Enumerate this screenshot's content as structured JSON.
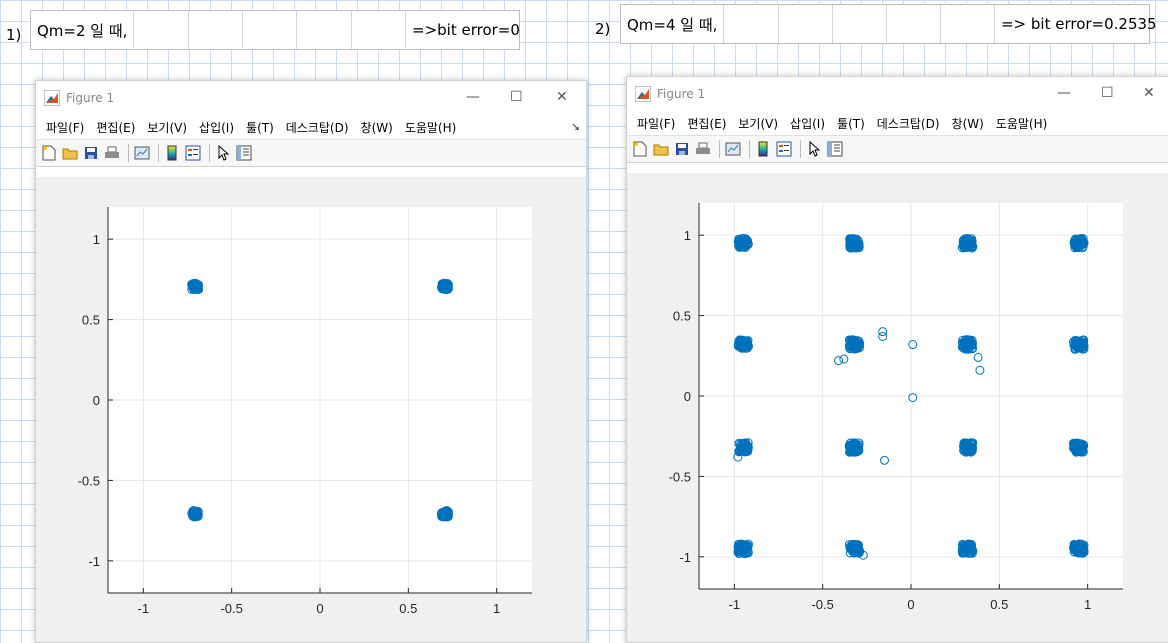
{
  "left": {
    "caption": "1)",
    "table": {
      "label": "Qm=2 일 때,",
      "result": "=>bit error=0"
    },
    "window": {
      "title": "Figure 1",
      "controls": {
        "minimize": "—",
        "maximize": "☐",
        "close": "✕"
      },
      "menus": [
        "파일(F)",
        "편집(E)",
        "보기(V)",
        "삽입(I)",
        "툴(T)",
        "데스크탑(D)",
        "창(W)",
        "도움말(H)"
      ],
      "dock_symbol": "↘",
      "toolbar_icons": [
        "new-figure-icon",
        "open-file-icon",
        "save-icon",
        "print-icon",
        "link-plot-icon",
        "colorbar-icon",
        "legend-icon",
        "pointer-icon",
        "property-editor-icon"
      ]
    }
  },
  "right": {
    "caption": "2)",
    "table": {
      "label": "Qm=4 일 때,",
      "result": "=> bit error=0.2535"
    },
    "window": {
      "title": "Figure 1",
      "controls": {
        "minimize": "—",
        "maximize": "☐",
        "close": "✕"
      },
      "menus": [
        "파일(F)",
        "편집(E)",
        "보기(V)",
        "삽입(I)",
        "툴(T)",
        "데스크탑(D)",
        "창(W)",
        "도움말(H)"
      ],
      "toolbar_icons": [
        "new-figure-icon",
        "open-file-icon",
        "save-icon",
        "print-icon",
        "link-plot-icon",
        "colorbar-icon",
        "legend-icon",
        "pointer-icon",
        "property-editor-icon"
      ]
    }
  },
  "chart_data": [
    {
      "type": "scatter",
      "title": "",
      "xlabel": "",
      "ylabel": "",
      "xlim": [
        -1.2,
        1.2
      ],
      "ylim": [
        -1.2,
        1.2
      ],
      "xticks": [
        "-1",
        "-0.5",
        "0",
        "0.5",
        "1"
      ],
      "yticks": [
        "1",
        "0.5",
        "0",
        "-0.5",
        "-1"
      ],
      "grid": true,
      "marker": "circle-open",
      "color": "#0072bd",
      "constellation": [
        [
          -0.707,
          0.707
        ],
        [
          0.707,
          0.707
        ],
        [
          -0.707,
          -0.707
        ],
        [
          0.707,
          -0.707
        ]
      ],
      "cluster_spread": 0.02,
      "outliers": []
    },
    {
      "type": "scatter",
      "title": "",
      "xlabel": "",
      "ylabel": "",
      "xlim": [
        -1.2,
        1.2
      ],
      "ylim": [
        -1.2,
        1.2
      ],
      "xticks": [
        "-1",
        "-0.5",
        "0",
        "0.5",
        "1"
      ],
      "yticks": [
        "1",
        "0.5",
        "0",
        "-0.5",
        "-1"
      ],
      "grid": true,
      "marker": "circle-open",
      "color": "#0072bd",
      "constellation": [
        [
          -0.95,
          0.95
        ],
        [
          -0.32,
          0.95
        ],
        [
          0.32,
          0.95
        ],
        [
          0.95,
          0.95
        ],
        [
          -0.95,
          0.32
        ],
        [
          -0.32,
          0.32
        ],
        [
          0.32,
          0.32
        ],
        [
          0.95,
          0.32
        ],
        [
          -0.95,
          -0.32
        ],
        [
          -0.32,
          -0.32
        ],
        [
          0.32,
          -0.32
        ],
        [
          0.95,
          -0.32
        ],
        [
          -0.95,
          -0.95
        ],
        [
          -0.32,
          -0.95
        ],
        [
          0.32,
          -0.95
        ],
        [
          0.95,
          -0.95
        ]
      ],
      "cluster_spread": 0.03,
      "outliers": [
        [
          -0.16,
          0.4
        ],
        [
          -0.16,
          0.37
        ],
        [
          -0.41,
          0.22
        ],
        [
          -0.38,
          0.23
        ],
        [
          0.01,
          0.32
        ],
        [
          0.01,
          -0.01
        ],
        [
          0.38,
          0.24
        ],
        [
          0.39,
          0.16
        ],
        [
          -0.15,
          -0.4
        ],
        [
          -0.98,
          -0.38
        ],
        [
          -0.27,
          -0.99
        ]
      ]
    }
  ]
}
